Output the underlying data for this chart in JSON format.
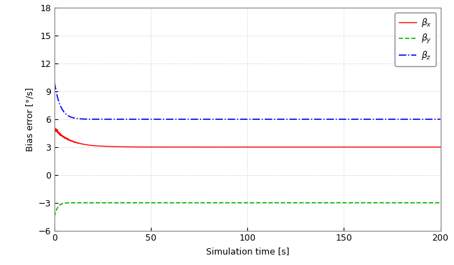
{
  "title": "",
  "xlabel": "Simulation time [s]",
  "ylabel": "Bias error [°/s]",
  "xlim": [
    0,
    200
  ],
  "ylim": [
    -6,
    18
  ],
  "yticks": [
    -6,
    -3,
    0,
    3,
    6,
    9,
    12,
    15,
    18
  ],
  "xticks": [
    0,
    50,
    100,
    150,
    200
  ],
  "grid_color": "#c0c0c0",
  "background_color": "#ffffff",
  "beta_x": {
    "steady_state": 3.0,
    "initial_value": 5.0,
    "tau": 8.0,
    "color": "#ff0000",
    "linestyle": "-",
    "linewidth": 1.0,
    "label": "$\\beta_x$"
  },
  "beta_y": {
    "steady_state": -3.0,
    "initial_value": -4.5,
    "tau": 1.5,
    "color": "#00bb00",
    "linestyle": "--",
    "linewidth": 1.2,
    "label": "$\\beta_y$"
  },
  "beta_z": {
    "steady_state": 6.0,
    "initial_value": 10.0,
    "tau": 3.0,
    "color": "#0000ff",
    "linestyle": "-.",
    "linewidth": 1.2,
    "label": "$\\beta_z$"
  },
  "legend_fontsize": 9,
  "axis_fontsize": 9,
  "tick_fontsize": 9
}
